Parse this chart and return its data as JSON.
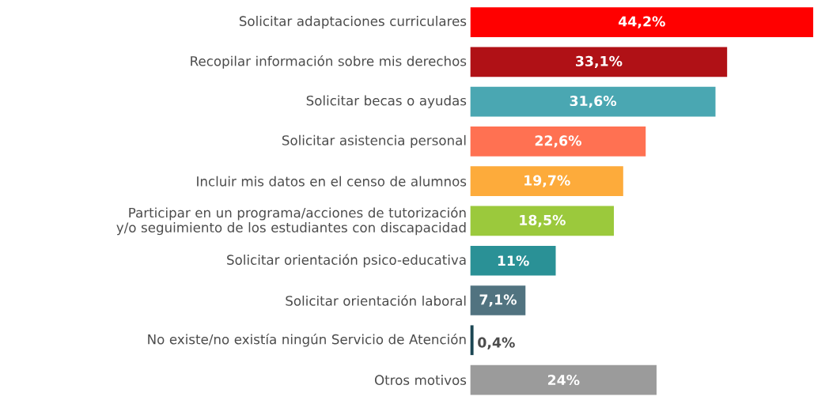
{
  "chart_data": {
    "type": "bar",
    "orientation": "horizontal",
    "categories": [
      "Solicitar adaptaciones curriculares",
      "Recopilar información sobre mis derechos",
      "Solicitar becas o ayudas",
      "Solicitar asistencia personal",
      "Incluir mis datos en el censo de alumnos",
      "Participar en un programa/acciones de tutorización y/o seguimiento de los estudiantes con discapacidad",
      "Solicitar orientación psico-educativa",
      "Solicitar orientación laboral",
      "No existe/no existía ningún Servicio de Atención",
      "Otros motivos"
    ],
    "values": [
      44.2,
      33.1,
      31.6,
      22.6,
      19.7,
      18.5,
      11,
      7.1,
      0.4,
      24
    ],
    "value_labels": [
      "44,2%",
      "33,1%",
      "31,6%",
      "22,6%",
      "19,7%",
      "18,5%",
      "11%",
      "7,1%",
      "0,4%",
      "24%"
    ],
    "colors": [
      "#ff0000",
      "#b01116",
      "#4aa7b2",
      "#ff7152",
      "#fdab3b",
      "#9bc93c",
      "#2a9196",
      "#517380",
      "#1b4653",
      "#9b9b9b"
    ]
  }
}
